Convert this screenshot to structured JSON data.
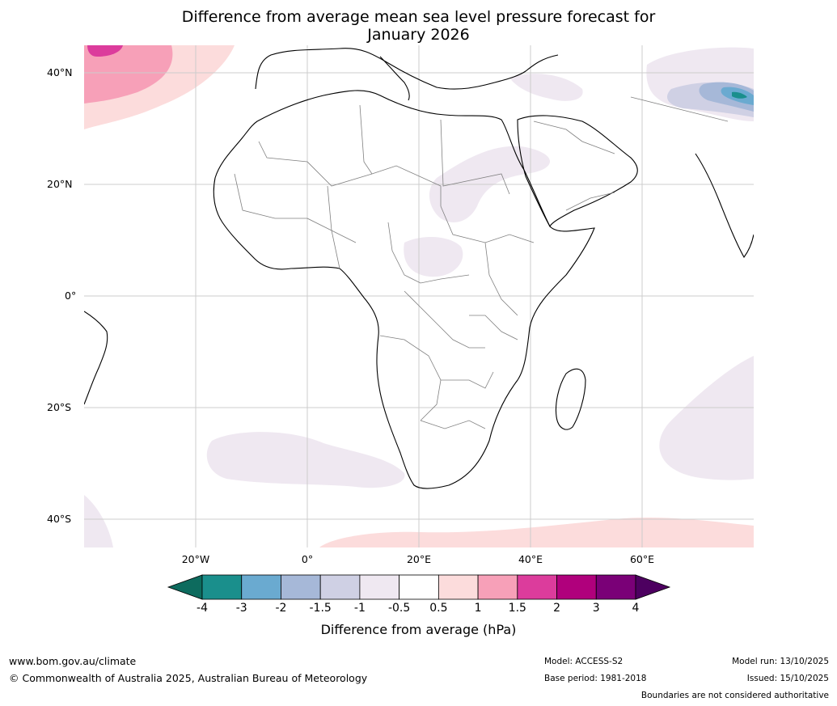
{
  "title": {
    "line1": "Difference from average mean sea level pressure forecast for",
    "line2": "January 2026"
  },
  "map": {
    "lat_labels": [
      "40°N",
      "20°N",
      "0°",
      "20°S",
      "40°S"
    ],
    "lon_labels": [
      "20°W",
      "0°",
      "20°E",
      "40°E",
      "60°E"
    ],
    "region": "Africa and surrounding oceans"
  },
  "colorbar": {
    "ticks": [
      "-4",
      "-3",
      "-2",
      "-1.5",
      "-1",
      "-0.5",
      "0.5",
      "1",
      "1.5",
      "2",
      "3",
      "4"
    ],
    "colors": [
      "#1a8f8c",
      "#6aaad0",
      "#a6b8d8",
      "#cfd0e4",
      "#efe8f1",
      "#ffffff",
      "#fcdcdc",
      "#f7a0b8",
      "#dc3c9c",
      "#b0007c",
      "#7a0077"
    ],
    "under_color": "#0d6b5e",
    "over_color": "#4d0060",
    "label": "Difference from average (hPa)"
  },
  "footer": {
    "website": "www.bom.gov.au/climate",
    "copyright": "© Commonwealth of Australia 2025, Australian Bureau of Meteorology",
    "model": "Model: ACCESS-S2",
    "base_period": "Base period: 1981-2018",
    "model_run": "Model run: 13/10/2025",
    "issued": "Issued: 15/10/2025",
    "disclaimer": "Boundaries are not considered authoritative"
  }
}
